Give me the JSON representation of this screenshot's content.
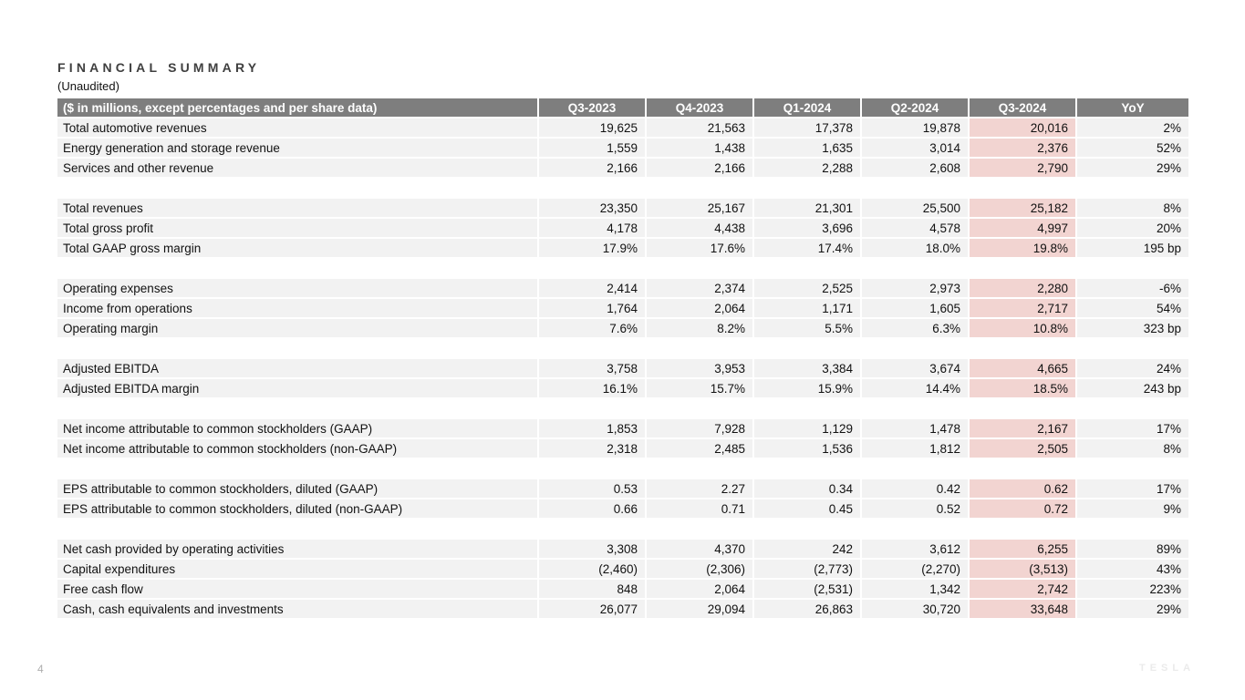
{
  "page": {
    "title": "FINANCIAL SUMMARY",
    "subtitle": "(Unaudited)",
    "page_number": "4",
    "brand_wordmark": "TESLA"
  },
  "table": {
    "columns": [
      "($ in millions, except percentages and per share data)",
      "Q3-2023",
      "Q4-2023",
      "Q1-2024",
      "Q2-2024",
      "Q3-2024",
      "YoY"
    ],
    "highlight_column": "Q3-2024",
    "colors": {
      "header_bg": "#7e7e7e",
      "header_text": "#ffffff",
      "row_bg": "#f2f2f2",
      "highlight_bg": "#f2d4d1"
    },
    "sections": [
      {
        "rows": [
          {
            "label": "Total automotive revenues",
            "values": [
              "19,625",
              "21,563",
              "17,378",
              "19,878",
              "20,016",
              "2%"
            ]
          },
          {
            "label": "Energy generation and storage revenue",
            "values": [
              "1,559",
              "1,438",
              "1,635",
              "3,014",
              "2,376",
              "52%"
            ]
          },
          {
            "label": "Services and other revenue",
            "values": [
              "2,166",
              "2,166",
              "2,288",
              "2,608",
              "2,790",
              "29%"
            ]
          }
        ]
      },
      {
        "rows": [
          {
            "label": "Total revenues",
            "values": [
              "23,350",
              "25,167",
              "21,301",
              "25,500",
              "25,182",
              "8%"
            ]
          },
          {
            "label": "Total gross profit",
            "values": [
              "4,178",
              "4,438",
              "3,696",
              "4,578",
              "4,997",
              "20%"
            ]
          },
          {
            "label": "Total GAAP gross margin",
            "values": [
              "17.9%",
              "17.6%",
              "17.4%",
              "18.0%",
              "19.8%",
              "195 bp"
            ]
          }
        ]
      },
      {
        "rows": [
          {
            "label": "Operating expenses",
            "values": [
              "2,414",
              "2,374",
              "2,525",
              "2,973",
              "2,280",
              "-6%"
            ]
          },
          {
            "label": "Income from operations",
            "values": [
              "1,764",
              "2,064",
              "1,171",
              "1,605",
              "2,717",
              "54%"
            ]
          },
          {
            "label": "Operating margin",
            "values": [
              "7.6%",
              "8.2%",
              "5.5%",
              "6.3%",
              "10.8%",
              "323 bp"
            ]
          }
        ]
      },
      {
        "rows": [
          {
            "label": "Adjusted EBITDA",
            "values": [
              "3,758",
              "3,953",
              "3,384",
              "3,674",
              "4,665",
              "24%"
            ]
          },
          {
            "label": "Adjusted EBITDA margin",
            "values": [
              "16.1%",
              "15.7%",
              "15.9%",
              "14.4%",
              "18.5%",
              "243 bp"
            ]
          }
        ]
      },
      {
        "rows": [
          {
            "label": "Net income attributable to common stockholders (GAAP)",
            "values": [
              "1,853",
              "7,928",
              "1,129",
              "1,478",
              "2,167",
              "17%"
            ]
          },
          {
            "label": "Net income attributable to common stockholders (non-GAAP)",
            "values": [
              "2,318",
              "2,485",
              "1,536",
              "1,812",
              "2,505",
              "8%"
            ]
          }
        ]
      },
      {
        "rows": [
          {
            "label": "EPS attributable to common stockholders, diluted (GAAP)",
            "values": [
              "0.53",
              "2.27",
              "0.34",
              "0.42",
              "0.62",
              "17%"
            ]
          },
          {
            "label": "EPS attributable to common stockholders, diluted (non-GAAP)",
            "values": [
              "0.66",
              "0.71",
              "0.45",
              "0.52",
              "0.72",
              "9%"
            ]
          }
        ]
      },
      {
        "rows": [
          {
            "label": "Net cash provided by operating activities",
            "values": [
              "3,308",
              "4,370",
              "242",
              "3,612",
              "6,255",
              "89%"
            ]
          },
          {
            "label": "Capital expenditures",
            "values": [
              "(2,460)",
              "(2,306)",
              "(2,773)",
              "(2,270)",
              "(3,513)",
              "43%"
            ]
          },
          {
            "label": "Free cash flow",
            "values": [
              "848",
              "2,064",
              "(2,531)",
              "1,342",
              "2,742",
              "223%"
            ]
          },
          {
            "label": "Cash, cash equivalents and investments",
            "values": [
              "26,077",
              "29,094",
              "26,863",
              "30,720",
              "33,648",
              "29%"
            ]
          }
        ]
      }
    ]
  }
}
